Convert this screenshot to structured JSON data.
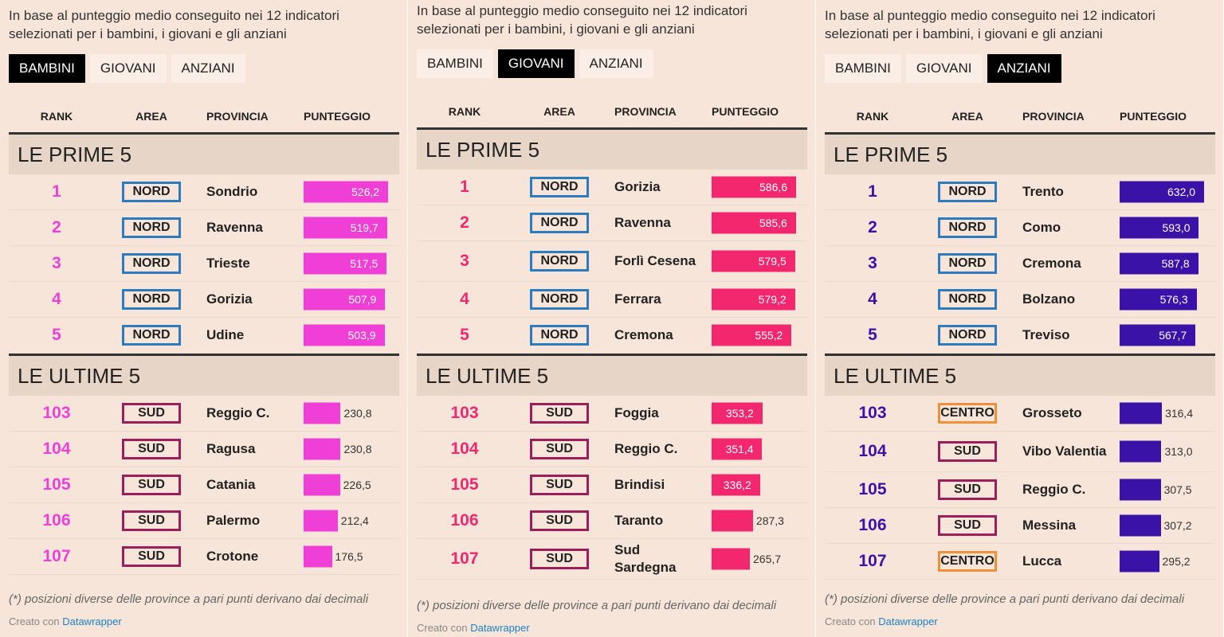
{
  "panels": [
    {
      "intro": "In base al punteggio medio conseguito nei 12 indicatori selezionati per i bambini, i giovani e gli anziani",
      "tabs": [
        "BAMBINI",
        "GIOVANI",
        "ANZIANI"
      ],
      "active_tab": 0,
      "color": "#ef3fd6",
      "headers": [
        "RANK",
        "AREA",
        "PROVINCIA",
        "PUNTEGGIO"
      ],
      "sections": [
        {
          "title": "LE PRIME 5",
          "rows": [
            {
              "rank": "1",
              "area": "NORD",
              "provincia": "Sondrio",
              "score": 526.2,
              "score_label": "526,2"
            },
            {
              "rank": "2",
              "area": "NORD",
              "provincia": "Ravenna",
              "score": 519.7,
              "score_label": "519,7"
            },
            {
              "rank": "3",
              "area": "NORD",
              "provincia": "Trieste",
              "score": 517.5,
              "score_label": "517,5"
            },
            {
              "rank": "4",
              "area": "NORD",
              "provincia": "Gorizia",
              "score": 507.9,
              "score_label": "507,9"
            },
            {
              "rank": "5",
              "area": "NORD",
              "provincia": "Udine",
              "score": 503.9,
              "score_label": "503,9"
            }
          ]
        },
        {
          "title": "LE ULTIME 5",
          "rows": [
            {
              "rank": "103",
              "area": "SUD",
              "provincia": "Reggio C.",
              "score": 230.8,
              "score_label": "230,8"
            },
            {
              "rank": "104",
              "area": "SUD",
              "provincia": "Ragusa",
              "score": 230.8,
              "score_label": "230,8"
            },
            {
              "rank": "105",
              "area": "SUD",
              "provincia": "Catania",
              "score": 226.5,
              "score_label": "226,5"
            },
            {
              "rank": "106",
              "area": "SUD",
              "provincia": "Palermo",
              "score": 212.4,
              "score_label": "212,4"
            },
            {
              "rank": "107",
              "area": "SUD",
              "provincia": "Crotone",
              "score": 176.5,
              "score_label": "176,5"
            }
          ]
        }
      ],
      "footnote": "(*) posizioni diverse delle province a pari punti derivano dai decimali",
      "credit_prefix": "Creato con",
      "credit_link": "Datawrapper"
    },
    {
      "intro": "In base al punteggio medio conseguito nei 12 indicatori selezionati per i bambini, i giovani e gli anziani",
      "tabs": [
        "BAMBINI",
        "GIOVANI",
        "ANZIANI"
      ],
      "active_tab": 1,
      "color": "#f2276e",
      "headers": [
        "RANK",
        "AREA",
        "PROVINCIA",
        "PUNTEGGIO"
      ],
      "sections": [
        {
          "title": "LE PRIME 5",
          "rows": [
            {
              "rank": "1",
              "area": "NORD",
              "provincia": "Gorizia",
              "score": 586.6,
              "score_label": "586,6"
            },
            {
              "rank": "2",
              "area": "NORD",
              "provincia": "Ravenna",
              "score": 585.6,
              "score_label": "585,6"
            },
            {
              "rank": "3",
              "area": "NORD",
              "provincia": "Forlì Cesena",
              "score": 579.5,
              "score_label": "579,5"
            },
            {
              "rank": "4",
              "area": "NORD",
              "provincia": "Ferrara",
              "score": 579.2,
              "score_label": "579,2"
            },
            {
              "rank": "5",
              "area": "NORD",
              "provincia": "Cremona",
              "score": 555.2,
              "score_label": "555,2"
            }
          ]
        },
        {
          "title": "LE ULTIME 5",
          "rows": [
            {
              "rank": "103",
              "area": "SUD",
              "provincia": "Foggia",
              "score": 353.2,
              "score_label": "353,2"
            },
            {
              "rank": "104",
              "area": "SUD",
              "provincia": "Reggio C.",
              "score": 351.4,
              "score_label": "351,4"
            },
            {
              "rank": "105",
              "area": "SUD",
              "provincia": "Brindisi",
              "score": 336.2,
              "score_label": "336,2"
            },
            {
              "rank": "106",
              "area": "SUD",
              "provincia": "Taranto",
              "score": 287.3,
              "score_label": "287,3"
            },
            {
              "rank": "107",
              "area": "SUD",
              "provincia": "Sud Sardegna",
              "score": 265.7,
              "score_label": "265,7"
            }
          ]
        }
      ],
      "footnote": "(*) posizioni diverse delle province a pari punti derivano dai decimali",
      "credit_prefix": "Creato con",
      "credit_link": "Datawrapper"
    },
    {
      "intro": "In base al punteggio medio conseguito nei 12 indicatori selezionati per i bambini, i giovani e gli anziani",
      "tabs": [
        "BAMBINI",
        "GIOVANI",
        "ANZIANI"
      ],
      "active_tab": 2,
      "color": "#3a12a8",
      "headers": [
        "RANK",
        "AREA",
        "PROVINCIA",
        "PUNTEGGIO"
      ],
      "sections": [
        {
          "title": "LE PRIME 5",
          "rows": [
            {
              "rank": "1",
              "area": "NORD",
              "provincia": "Trento",
              "score": 632.0,
              "score_label": "632,0"
            },
            {
              "rank": "2",
              "area": "NORD",
              "provincia": "Como",
              "score": 593.0,
              "score_label": "593,0"
            },
            {
              "rank": "3",
              "area": "NORD",
              "provincia": "Cremona",
              "score": 587.8,
              "score_label": "587,8"
            },
            {
              "rank": "4",
              "area": "NORD",
              "provincia": "Bolzano",
              "score": 576.3,
              "score_label": "576,3"
            },
            {
              "rank": "5",
              "area": "NORD",
              "provincia": "Treviso",
              "score": 567.7,
              "score_label": "567,7"
            }
          ]
        },
        {
          "title": "LE ULTIME 5",
          "rows": [
            {
              "rank": "103",
              "area": "CENTRO",
              "provincia": "Grosseto",
              "score": 316.4,
              "score_label": "316,4"
            },
            {
              "rank": "104",
              "area": "SUD",
              "provincia": "Vibo Valentia",
              "score": 313.0,
              "score_label": "313,0"
            },
            {
              "rank": "105",
              "area": "SUD",
              "provincia": "Reggio C.",
              "score": 307.5,
              "score_label": "307,5"
            },
            {
              "rank": "106",
              "area": "SUD",
              "provincia": "Messina",
              "score": 307.2,
              "score_label": "307,2"
            },
            {
              "rank": "107",
              "area": "CENTRO",
              "provincia": "Lucca",
              "score": 295.2,
              "score_label": "295,2"
            }
          ]
        }
      ],
      "footnote": "(*) posizioni diverse delle province a pari punti derivano dai decimali",
      "credit_prefix": "Creato con",
      "credit_link": "Datawrapper"
    }
  ],
  "area_colors": {
    "NORD": "#2b7bbd",
    "SUD": "#9c1f5c",
    "CENTRO": "#f0913a"
  }
}
